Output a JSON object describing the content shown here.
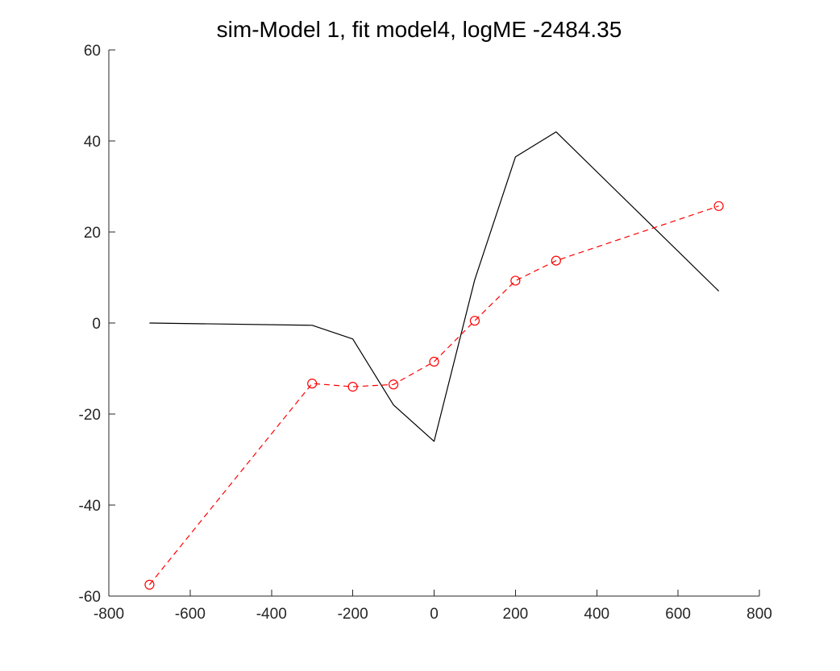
{
  "chart_data": {
    "type": "line",
    "title": "sim-Model 1, fit model4, logME -2484.35",
    "xlabel": "",
    "ylabel": "",
    "xlim": [
      -800,
      800
    ],
    "ylim": [
      -60,
      60
    ],
    "xticks": [
      -800,
      -600,
      -400,
      -200,
      0,
      200,
      400,
      600,
      800
    ],
    "yticks": [
      -60,
      -40,
      -20,
      0,
      20,
      40,
      60
    ],
    "xtick_labels": [
      "-800",
      "-600",
      "-400",
      "-200",
      "0",
      "200",
      "400",
      "600",
      "800"
    ],
    "ytick_labels": [
      "-60",
      "-40",
      "-20",
      "0",
      "20",
      "40",
      "60"
    ],
    "grid": false,
    "legend": "none",
    "series": [
      {
        "style": "solid",
        "color": "#000000",
        "marker": "none",
        "x": [
          -700,
          -300,
          -200,
          -100,
          0,
          100,
          200,
          300,
          700
        ],
        "y": [
          0,
          -0.5,
          -3.5,
          -18,
          -26,
          9.5,
          36.5,
          42,
          7
        ]
      },
      {
        "style": "dashed",
        "color": "#ff0000",
        "marker": "circle",
        "x": [
          -700,
          -300,
          -200,
          -100,
          0,
          100,
          200,
          300,
          700
        ],
        "y": [
          -57.5,
          -13.3,
          -14,
          -13.5,
          -8.5,
          0.5,
          9.3,
          13.7,
          25.7
        ]
      }
    ]
  }
}
